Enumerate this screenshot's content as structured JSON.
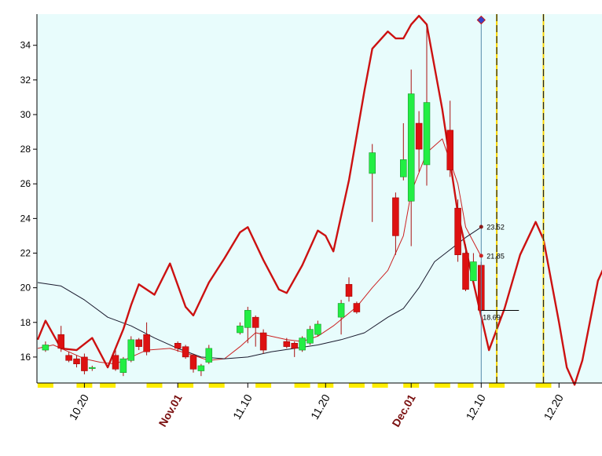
{
  "chart_data": {
    "type": "candlestick",
    "title": "",
    "xlabel": "",
    "ylabel": "",
    "ylim": [
      14.5,
      35.8
    ],
    "yticks": [
      "16",
      "18",
      "20",
      "22",
      "24",
      "26",
      "28",
      "30",
      "32",
      "34"
    ],
    "grid": false,
    "x_tick_labels": [
      {
        "date": "2013-10-20",
        "label": "10.20",
        "major": false
      },
      {
        "date": "2013-11-01",
        "label": "Nov.01",
        "major": true
      },
      {
        "date": "2013-11-10",
        "label": "11.10",
        "major": false
      },
      {
        "date": "2013-11-20",
        "label": "11.20",
        "major": false
      },
      {
        "date": "2013-12-01",
        "label": "Dec.01",
        "major": true
      },
      {
        "date": "2013-12-10",
        "label": "12.10",
        "major": false
      },
      {
        "date": "2013-12-20",
        "label": "12.20",
        "major": false
      }
    ],
    "candles": [
      {
        "date": "2013-10-15",
        "open": 16.4,
        "close": 16.7,
        "high": 16.9,
        "low": 16.3
      },
      {
        "date": "2013-10-17",
        "open": 17.3,
        "close": 16.5,
        "high": 17.8,
        "low": 16.3
      },
      {
        "date": "2013-10-18",
        "open": 16.1,
        "close": 15.8,
        "high": 16.3,
        "low": 15.7
      },
      {
        "date": "2013-10-19",
        "open": 15.9,
        "close": 15.6,
        "high": 16.1,
        "low": 15.4
      },
      {
        "date": "2013-10-20",
        "open": 16.0,
        "close": 15.2,
        "high": 16.2,
        "low": 15.0
      },
      {
        "date": "2013-10-21",
        "open": 15.4,
        "close": 15.4,
        "high": 15.5,
        "low": 15.2
      },
      {
        "date": "2013-10-24",
        "open": 16.1,
        "close": 15.3,
        "high": 16.4,
        "low": 15.2
      },
      {
        "date": "2013-10-25",
        "open": 15.1,
        "close": 15.9,
        "high": 16.0,
        "low": 14.9
      },
      {
        "date": "2013-10-26",
        "open": 15.8,
        "close": 17.0,
        "high": 17.2,
        "low": 15.7
      },
      {
        "date": "2013-10-27",
        "open": 17.0,
        "close": 16.6,
        "high": 17.1,
        "low": 16.4
      },
      {
        "date": "2013-10-28",
        "open": 17.3,
        "close": 16.3,
        "high": 18.0,
        "low": 16.1
      },
      {
        "date": "2013-11-01",
        "open": 16.8,
        "close": 16.5,
        "high": 16.9,
        "low": 16.3
      },
      {
        "date": "2013-11-02",
        "open": 16.6,
        "close": 16.0,
        "high": 16.7,
        "low": 15.9
      },
      {
        "date": "2013-11-03",
        "open": 16.1,
        "close": 15.3,
        "high": 16.2,
        "low": 15.1
      },
      {
        "date": "2013-11-04",
        "open": 15.2,
        "close": 15.5,
        "high": 15.6,
        "low": 14.9
      },
      {
        "date": "2013-11-05",
        "open": 15.7,
        "close": 16.5,
        "high": 16.7,
        "low": 15.6
      },
      {
        "date": "2013-11-09",
        "open": 17.4,
        "close": 17.8,
        "high": 18.0,
        "low": 17.3
      },
      {
        "date": "2013-11-10",
        "open": 17.7,
        "close": 18.7,
        "high": 18.9,
        "low": 16.8
      },
      {
        "date": "2013-11-11",
        "open": 18.3,
        "close": 17.7,
        "high": 18.4,
        "low": 16.6
      },
      {
        "date": "2013-11-12",
        "open": 17.4,
        "close": 16.4,
        "high": 17.6,
        "low": 16.2
      },
      {
        "date": "2013-11-15",
        "open": 16.9,
        "close": 16.6,
        "high": 17.1,
        "low": 16.5
      },
      {
        "date": "2013-11-16",
        "open": 16.8,
        "close": 16.5,
        "high": 16.9,
        "low": 16.0
      },
      {
        "date": "2013-11-17",
        "open": 16.4,
        "close": 17.1,
        "high": 17.2,
        "low": 16.3
      },
      {
        "date": "2013-11-18",
        "open": 16.8,
        "close": 17.6,
        "high": 17.8,
        "low": 16.7
      },
      {
        "date": "2013-11-19",
        "open": 17.3,
        "close": 17.9,
        "high": 18.1,
        "low": 17.2
      },
      {
        "date": "2013-11-22",
        "open": 18.3,
        "close": 19.1,
        "high": 19.3,
        "low": 17.3
      },
      {
        "date": "2013-11-23",
        "open": 20.2,
        "close": 19.5,
        "high": 20.6,
        "low": 19.2
      },
      {
        "date": "2013-11-24",
        "open": 19.1,
        "close": 18.6,
        "high": 19.2,
        "low": 18.5
      },
      {
        "date": "2013-11-26",
        "open": 26.6,
        "close": 27.8,
        "high": 28.3,
        "low": 23.8
      },
      {
        "date": "2013-11-29",
        "open": 25.2,
        "close": 23.0,
        "high": 25.5,
        "low": 21.9
      },
      {
        "date": "2013-11-30",
        "open": 26.4,
        "close": 27.4,
        "high": 29.5,
        "low": 26.2
      },
      {
        "date": "2013-12-01",
        "open": 25.0,
        "close": 31.2,
        "high": 32.6,
        "low": 22.4
      },
      {
        "date": "2013-12-02",
        "open": 29.5,
        "close": 28.0,
        "high": 30.2,
        "low": 26.7
      },
      {
        "date": "2013-12-03",
        "open": 27.1,
        "close": 30.7,
        "high": 35.2,
        "low": 25.9
      },
      {
        "date": "2013-12-06",
        "open": 29.1,
        "close": 26.8,
        "high": 30.8,
        "low": 26.4
      },
      {
        "date": "2013-12-07",
        "open": 24.6,
        "close": 21.9,
        "high": 25.1,
        "low": 21.5
      },
      {
        "date": "2013-12-08",
        "open": 22.0,
        "close": 19.9,
        "high": 22.5,
        "low": 19.8
      },
      {
        "date": "2013-12-09",
        "open": 20.4,
        "close": 21.5,
        "high": 22.0,
        "low": 20.3
      },
      {
        "date": "2013-12-10",
        "open": 21.3,
        "close": 18.7,
        "high": 21.5,
        "low": 18.6
      }
    ],
    "series": [
      {
        "style": "short-moving-average",
        "color": "#cc2222",
        "points": [
          [
            "2013-10-14",
            16.5
          ],
          [
            "2013-10-16",
            16.7
          ],
          [
            "2013-10-18",
            16.3
          ],
          [
            "2013-10-20",
            15.9
          ],
          [
            "2013-10-22",
            15.7
          ],
          [
            "2013-10-24",
            15.6
          ],
          [
            "2013-10-26",
            16.0
          ],
          [
            "2013-10-28",
            16.4
          ],
          [
            "2013-10-31",
            16.5
          ],
          [
            "2013-11-03",
            16.1
          ],
          [
            "2013-11-05",
            15.8
          ],
          [
            "2013-11-07",
            15.9
          ],
          [
            "2013-11-09",
            16.6
          ],
          [
            "2013-11-11",
            17.4
          ],
          [
            "2013-11-13",
            17.2
          ],
          [
            "2013-11-15",
            17.0
          ],
          [
            "2013-11-17",
            16.9
          ],
          [
            "2013-11-19",
            17.2
          ],
          [
            "2013-11-21",
            17.8
          ],
          [
            "2013-11-24",
            18.9
          ],
          [
            "2013-11-26",
            20.0
          ],
          [
            "2013-11-28",
            21.0
          ],
          [
            "2013-11-30",
            23.0
          ],
          [
            "2013-12-01",
            25.5
          ],
          [
            "2013-12-03",
            27.8
          ],
          [
            "2013-12-05",
            28.6
          ],
          [
            "2013-12-07",
            26.0
          ],
          [
            "2013-12-08",
            23.5
          ],
          [
            "2013-12-10",
            21.8
          ]
        ]
      },
      {
        "style": "long-moving-average",
        "color": "#1a1a2e",
        "points": [
          [
            "2013-10-14",
            20.3
          ],
          [
            "2013-10-17",
            20.1
          ],
          [
            "2013-10-20",
            19.3
          ],
          [
            "2013-10-23",
            18.3
          ],
          [
            "2013-10-26",
            17.8
          ],
          [
            "2013-10-29",
            17.1
          ],
          [
            "2013-11-01",
            16.5
          ],
          [
            "2013-11-04",
            16.0
          ],
          [
            "2013-11-07",
            15.9
          ],
          [
            "2013-11-10",
            16.0
          ],
          [
            "2013-11-13",
            16.3
          ],
          [
            "2013-11-16",
            16.5
          ],
          [
            "2013-11-19",
            16.7
          ],
          [
            "2013-11-22",
            17.0
          ],
          [
            "2013-11-25",
            17.4
          ],
          [
            "2013-11-28",
            18.3
          ],
          [
            "2013-11-30",
            18.8
          ],
          [
            "2013-12-02",
            20.0
          ],
          [
            "2013-12-04",
            21.5
          ],
          [
            "2013-12-06",
            22.2
          ],
          [
            "2013-12-08",
            22.9
          ],
          [
            "2013-12-10",
            23.5
          ]
        ]
      },
      {
        "style": "cycle-projection",
        "color": "#cc1111",
        "points": [
          [
            "2013-10-14",
            17.0
          ],
          [
            "2013-10-15",
            18.1
          ],
          [
            "2013-10-17",
            16.5
          ],
          [
            "2013-10-19",
            16.4
          ],
          [
            "2013-10-21",
            17.1
          ],
          [
            "2013-10-23",
            15.4
          ],
          [
            "2013-10-25",
            17.6
          ],
          [
            "2013-10-26",
            19.0
          ],
          [
            "2013-10-27",
            20.2
          ],
          [
            "2013-10-29",
            19.6
          ],
          [
            "2013-10-31",
            21.4
          ],
          [
            "2013-11-02",
            18.9
          ],
          [
            "2013-11-03",
            18.4
          ],
          [
            "2013-11-05",
            20.3
          ],
          [
            "2013-11-07",
            21.7
          ],
          [
            "2013-11-09",
            23.2
          ],
          [
            "2013-11-10",
            23.5
          ],
          [
            "2013-11-12",
            21.6
          ],
          [
            "2013-11-14",
            19.9
          ],
          [
            "2013-11-15",
            19.7
          ],
          [
            "2013-11-17",
            21.3
          ],
          [
            "2013-11-19",
            23.3
          ],
          [
            "2013-11-20",
            23.0
          ],
          [
            "2013-11-21",
            22.1
          ],
          [
            "2013-11-23",
            26.2
          ],
          [
            "2013-11-25",
            31.4
          ],
          [
            "2013-11-26",
            33.8
          ],
          [
            "2013-11-28",
            34.8
          ],
          [
            "2013-11-29",
            34.4
          ],
          [
            "2013-11-30",
            34.4
          ],
          [
            "2013-12-01",
            35.2
          ],
          [
            "2013-12-02",
            35.7
          ],
          [
            "2013-12-03",
            35.2
          ],
          [
            "2013-12-05",
            30.3
          ],
          [
            "2013-12-07",
            24.3
          ],
          [
            "2013-12-09",
            20.3
          ],
          [
            "2013-12-11",
            16.4
          ],
          [
            "2013-12-13",
            18.8
          ],
          [
            "2013-12-15",
            21.9
          ],
          [
            "2013-12-17",
            23.8
          ],
          [
            "2013-12-18",
            22.8
          ],
          [
            "2013-12-20",
            18.0
          ],
          [
            "2013-12-21",
            15.4
          ],
          [
            "2013-12-22",
            14.4
          ],
          [
            "2013-12-23",
            15.8
          ],
          [
            "2013-12-25",
            20.4
          ],
          [
            "2013-12-27",
            22.4
          ],
          [
            "2013-12-28",
            23.5
          ]
        ]
      }
    ],
    "value_labels": [
      {
        "date": "2013-12-10",
        "value": 23.52,
        "label": "23.52",
        "color": "#8b1a1a"
      },
      {
        "date": "2013-12-10",
        "value": 21.85,
        "label": "21.85",
        "color": "#cc2222"
      },
      {
        "date": "2013-12-10",
        "value": 18.69,
        "label": "18.69",
        "color": "#000000"
      }
    ],
    "vertical_markers": [
      {
        "date": "2013-12-10",
        "style": "cursor"
      },
      {
        "date": "2013-12-12",
        "style": "dashed-yellow"
      },
      {
        "date": "2013-12-18",
        "style": "dashed-yellow"
      }
    ],
    "weekend_marks": [
      "2013-10-15",
      "2013-10-20",
      "2013-10-23",
      "2013-10-29",
      "2013-11-02",
      "2013-11-06",
      "2013-11-12",
      "2013-11-17",
      "2013-11-20",
      "2013-11-24",
      "2013-11-27",
      "2013-12-01",
      "2013-12-05",
      "2013-12-08",
      "2013-12-12",
      "2013-12-18",
      "2013-12-27"
    ],
    "colors": {
      "plot_background": "#e8fcfc",
      "bull_candle": "#22ee44",
      "bear_candle": "#dd1111",
      "wick": "#aa1111",
      "axis": "#000000",
      "major_date_label": "#7a1010",
      "minor_date_label": "#000000",
      "weekend_mark": "#ffee00",
      "projection_marker": "#ffd700"
    }
  }
}
